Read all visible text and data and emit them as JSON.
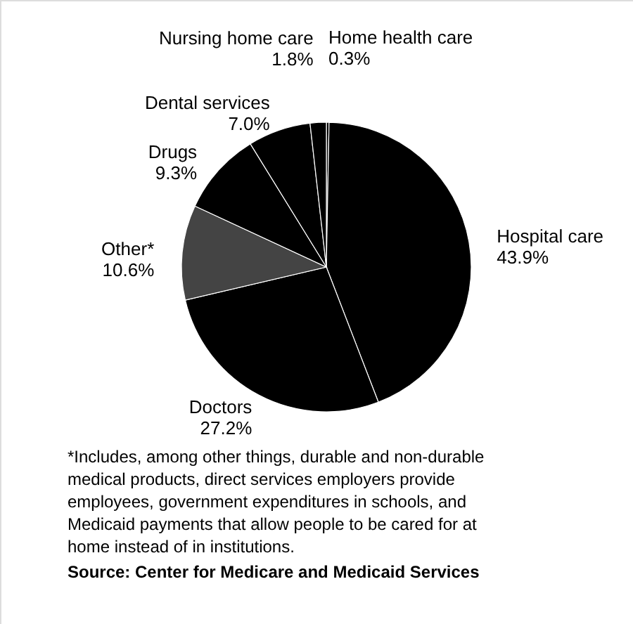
{
  "chart_data": {
    "type": "pie",
    "categories": [
      "Home health care",
      "Hospital care",
      "Doctors",
      "Other*",
      "Drugs",
      "Dental services",
      "Nursing home care"
    ],
    "values": [
      0.3,
      43.9,
      27.2,
      10.6,
      9.3,
      7.0,
      1.8
    ],
    "colors": [
      "#000000",
      "#000000",
      "#000000",
      "#444444",
      "#000000",
      "#000000",
      "#000000"
    ],
    "value_labels": [
      "0.3%",
      "43.9%",
      "27.2%",
      "10.6%",
      "9.3%",
      "7.0%",
      "1.8%"
    ],
    "annotations": [
      "*Includes, among other things, durable and non-durable\nmedical products, direct services employers provide\nemployees, government expenditures in schools, and\nMedicaid payments that allow people to be cared for at\nhome instead of in institutions.",
      "Source: Center for Medicare and Medicaid Services"
    ]
  }
}
